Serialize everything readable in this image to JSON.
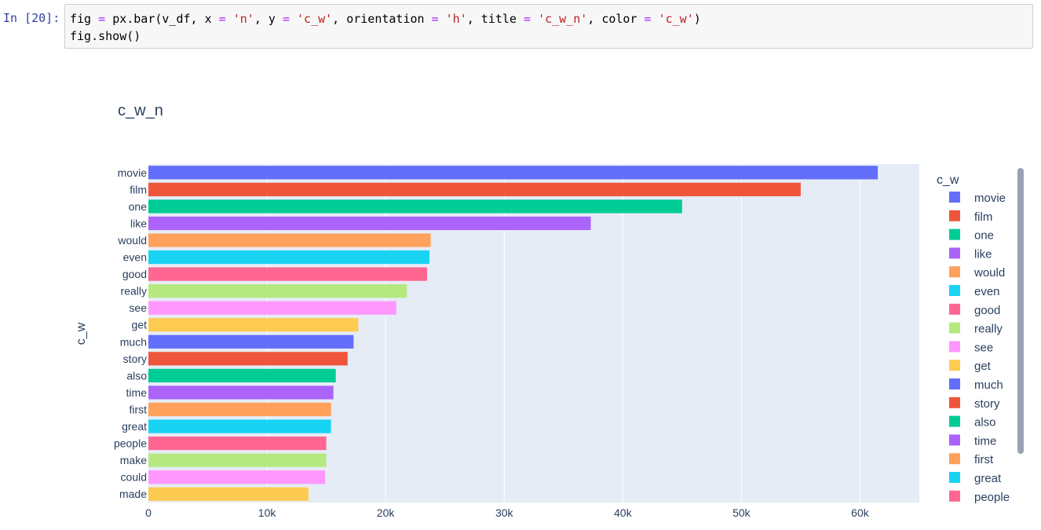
{
  "notebook": {
    "prompt": "In [20]:",
    "code": {
      "line1": [
        {
          "t": "fig",
          "c": "n"
        },
        {
          "t": " = ",
          "c": "op"
        },
        {
          "t": "px.bar(v_df, x ",
          "c": "n"
        },
        {
          "t": "=",
          "c": "op"
        },
        {
          "t": " ",
          "c": "n"
        },
        {
          "t": "'n'",
          "c": "str"
        },
        {
          "t": ", y ",
          "c": "n"
        },
        {
          "t": "=",
          "c": "op"
        },
        {
          "t": " ",
          "c": "n"
        },
        {
          "t": "'c_w'",
          "c": "str"
        },
        {
          "t": ", orientation ",
          "c": "n"
        },
        {
          "t": "=",
          "c": "op"
        },
        {
          "t": " ",
          "c": "n"
        },
        {
          "t": "'h'",
          "c": "str"
        },
        {
          "t": ", title ",
          "c": "n"
        },
        {
          "t": "=",
          "c": "op"
        },
        {
          "t": " ",
          "c": "n"
        },
        {
          "t": "'c_w_n'",
          "c": "str"
        },
        {
          "t": ", color ",
          "c": "n"
        },
        {
          "t": "=",
          "c": "op"
        },
        {
          "t": " ",
          "c": "n"
        },
        {
          "t": "'c_w'",
          "c": "str"
        },
        {
          "t": ")",
          "c": "n"
        }
      ],
      "line2": "fig.show()"
    }
  },
  "colors": {
    "plot_bg": "#e5ecf6",
    "grid": "#ffffff",
    "text": "#2a3f5f",
    "palette": [
      "#636efa",
      "#ef553b",
      "#00cc96",
      "#ab63fa",
      "#ffa15a",
      "#19d3f3",
      "#ff6692",
      "#b6e880",
      "#ff97ff",
      "#fecb52"
    ]
  },
  "chart_data": {
    "type": "bar",
    "orientation": "h",
    "title": "c_w_n",
    "xlabel": "",
    "ylabel": "c_w",
    "xlim": [
      0,
      65000
    ],
    "xticks": [
      0,
      10000,
      20000,
      30000,
      40000,
      50000,
      60000
    ],
    "xtick_labels": [
      "0",
      "10k",
      "20k",
      "30k",
      "40k",
      "50k",
      "60k"
    ],
    "grid": "vertical",
    "legend": {
      "title": "c_w",
      "placement": "right",
      "visible_entries": [
        "movie",
        "film",
        "one",
        "like",
        "would",
        "even",
        "good",
        "really",
        "see",
        "get",
        "much",
        "story",
        "also",
        "time",
        "first",
        "great",
        "people"
      ]
    },
    "categories": [
      "movie",
      "film",
      "one",
      "like",
      "would",
      "even",
      "good",
      "really",
      "see",
      "get",
      "much",
      "story",
      "also",
      "time",
      "first",
      "great",
      "people",
      "make",
      "could",
      "made"
    ],
    "values": [
      61500,
      55000,
      45000,
      37300,
      23800,
      23700,
      23500,
      21800,
      20900,
      17700,
      17300,
      16800,
      15800,
      15600,
      15400,
      15400,
      15000,
      15000,
      14900,
      13500
    ]
  }
}
